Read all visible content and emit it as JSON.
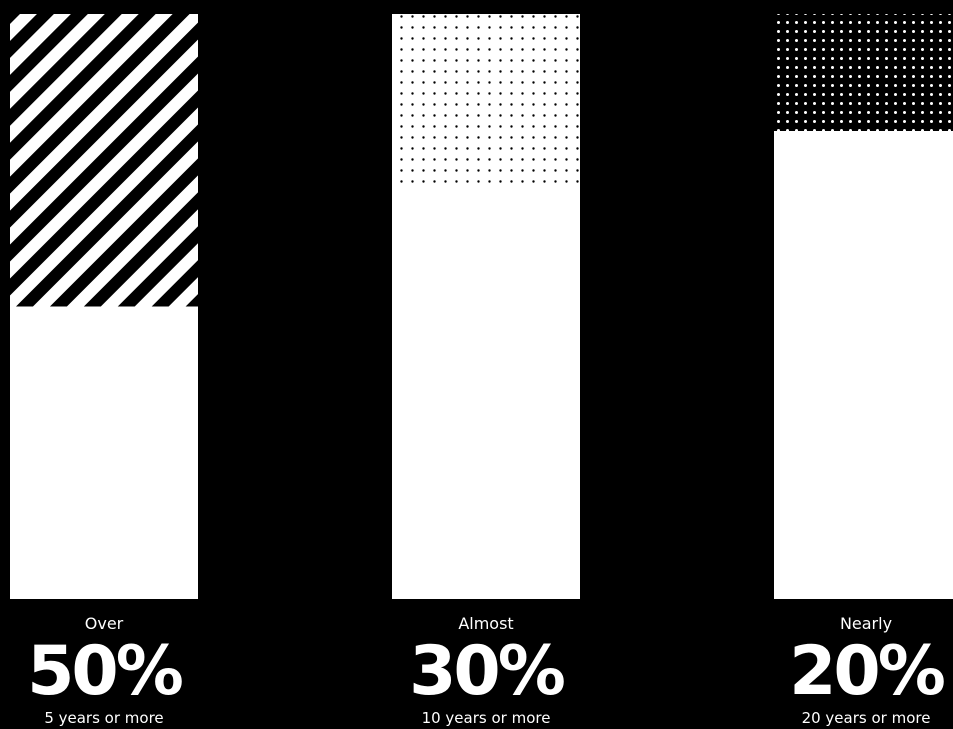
{
  "colors": {
    "background": "#000000",
    "bar_fill": "#ffffff",
    "pattern_ink": "#ffffff",
    "text": "#ffffff"
  },
  "chart_data": {
    "type": "bar",
    "title": "",
    "xlabel": "",
    "ylabel": "",
    "ylim": [
      0,
      100
    ],
    "grid": false,
    "legend": "none",
    "bars": [
      {
        "prefix": "Over",
        "value_label": "50%",
        "value": 50,
        "caption": "5 years or more",
        "pattern": "diagonal-stripes"
      },
      {
        "prefix": "Almost",
        "value_label": "30%",
        "value": 30,
        "caption": "10 years or more",
        "pattern": "sparse-dots"
      },
      {
        "prefix": "Nearly",
        "value_label": "20%",
        "value": 20,
        "caption": "20 years or more",
        "pattern": "dense-dots"
      }
    ]
  }
}
